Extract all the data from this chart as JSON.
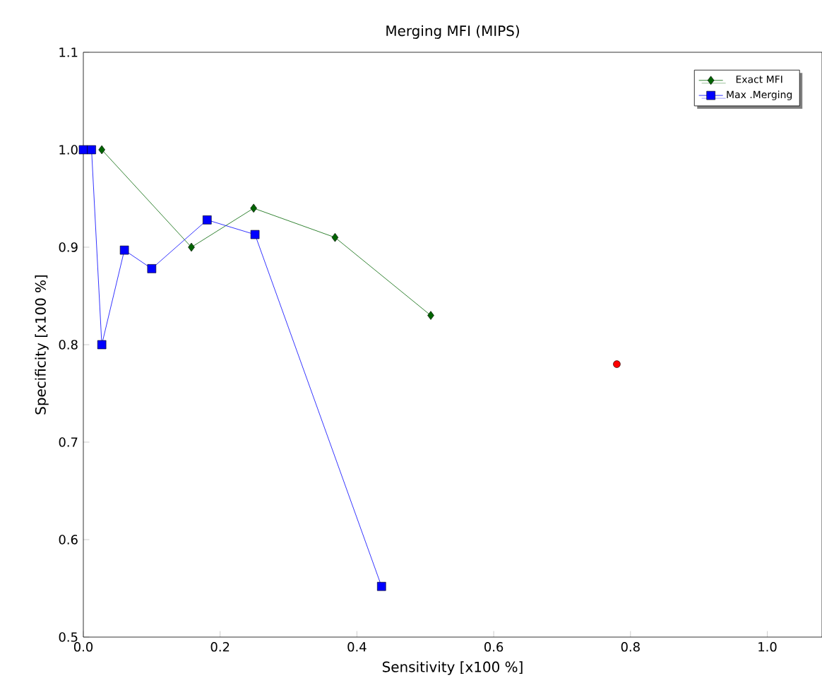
{
  "chart_data": {
    "type": "line",
    "title": "Merging MFI (MIPS)",
    "xlabel": "Sensitivity [x100 %]",
    "ylabel": "Specificity [x100 %]",
    "xlim": [
      0,
      1.08
    ],
    "ylim": [
      0.5,
      1.1
    ],
    "xticks": [
      {
        "value": 0,
        "label": "0.0"
      },
      0.2,
      0.4,
      0.6,
      0.8,
      {
        "value": 1,
        "label": "1.0"
      }
    ],
    "yticks": [
      0.5,
      0.6,
      0.7,
      0.8,
      0.9,
      {
        "value": 1,
        "label": "1.0"
      },
      1.1
    ],
    "legend": "top right",
    "grid": false,
    "series": [
      {
        "name": "Exact MFI",
        "marker": "diamond",
        "color": "#006400",
        "x": [
          0.027,
          0.158,
          0.249,
          0.368,
          0.508
        ],
        "values": [
          1.0,
          0.9,
          0.94,
          0.91,
          0.83
        ]
      },
      {
        "type": "scatter",
        "marker": "circle",
        "color": "#ff0000",
        "x": [
          0.78
        ],
        "values": [
          0.78
        ]
      },
      {
        "name": "Max .Merging",
        "marker": "square",
        "color": "#0000ff",
        "x": [
          0.0,
          0.012,
          0.027,
          0.06,
          0.1,
          0.181,
          0.251,
          0.436
        ],
        "values": [
          1.0,
          1.0,
          0.8,
          0.897,
          0.878,
          0.928,
          0.913,
          0.552
        ]
      }
    ]
  }
}
